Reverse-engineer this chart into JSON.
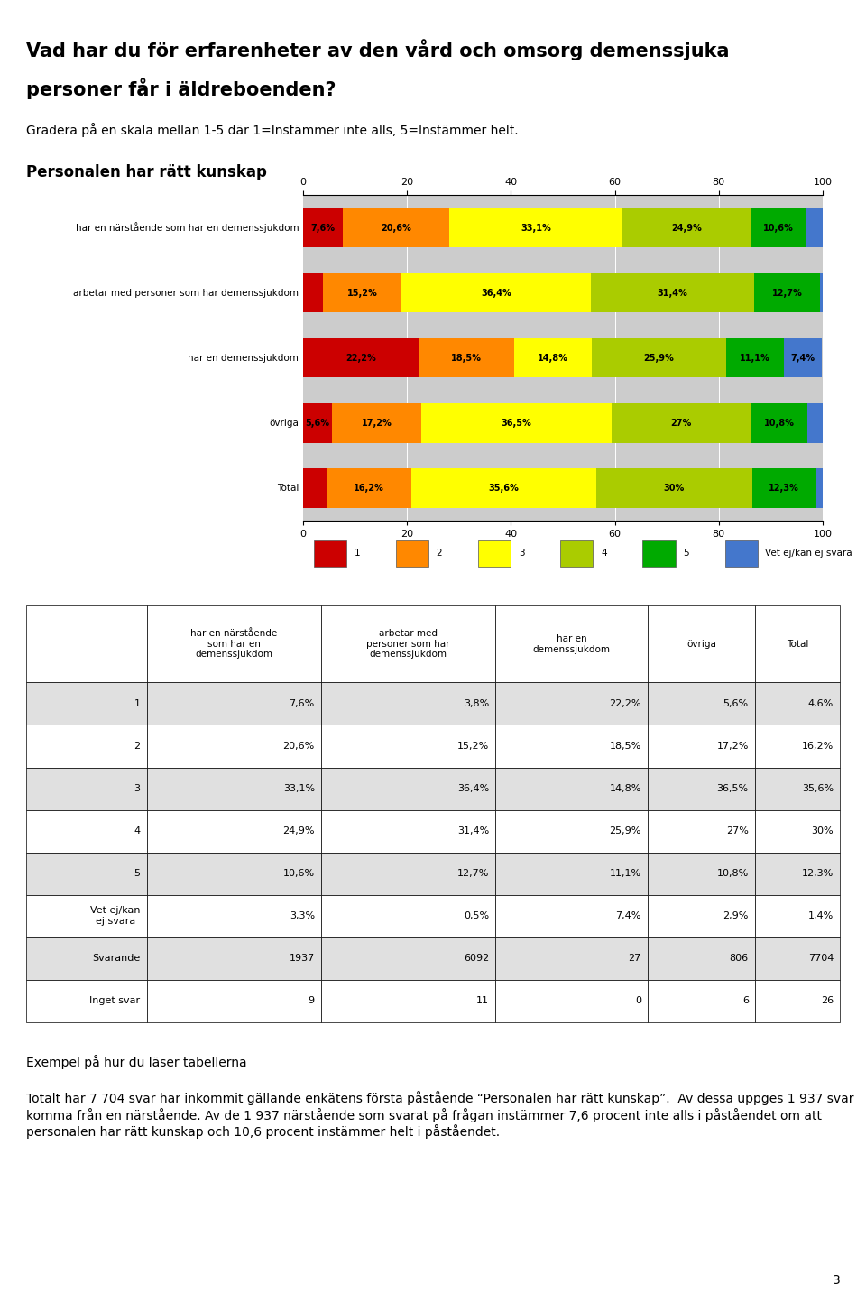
{
  "title_line1": "Vad har du för erfarenheter av den vård och omsorg demenssjuka",
  "title_line2": "personer får i äldreboenden?",
  "subtitle": "Gradera på en skala mellan 1-5 där 1=Instämmer inte alls, 5=Instämmer helt.",
  "chart_title": "Personalen har rätt kunskap",
  "categories": [
    "har en närstående som har en demenssjukdom",
    "arbetar med personer som har demenssjukdom",
    "har en demenssjukdom",
    "övriga",
    "Total"
  ],
  "bar_data": [
    [
      7.6,
      20.6,
      33.1,
      24.9,
      10.6,
      3.3
    ],
    [
      3.8,
      15.2,
      36.4,
      31.4,
      12.7,
      0.5
    ],
    [
      22.2,
      18.5,
      14.8,
      25.9,
      11.1,
      7.4
    ],
    [
      5.6,
      17.2,
      36.5,
      27.0,
      10.8,
      2.9
    ],
    [
      4.6,
      16.2,
      35.6,
      30.0,
      12.3,
      1.4
    ]
  ],
  "bar_labels": [
    [
      "7,6%",
      "20,6%",
      "33,1%",
      "24,9%",
      "10,6%",
      ""
    ],
    [
      "",
      "15,2%",
      "36,4%",
      "31,4%",
      "12,7%",
      ""
    ],
    [
      "22,2%",
      "18,5%",
      "14,8%",
      "25,9%",
      "11,1%",
      "7,4%"
    ],
    [
      "5,6%",
      "17,2%",
      "36,5%",
      "27%",
      "10,8%",
      ""
    ],
    [
      "",
      "16,2%",
      "35,6%",
      "30%",
      "12,3%",
      ""
    ]
  ],
  "colors": [
    "#cc0000",
    "#ff8800",
    "#ffff00",
    "#aacc00",
    "#00aa00",
    "#4477cc"
  ],
  "legend_labels": [
    "1",
    "2",
    "3",
    "4",
    "5",
    "Vet ej/kan ej svara"
  ],
  "chart_bg": "#cccccc",
  "table_headers": [
    "har en närstående\nsom har en\ndemenssjukdom",
    "arbetar med\npersoner som har\ndemenssjukdom",
    "har en\ndemenssjukdom",
    "övriga",
    "Total"
  ],
  "table_row_labels": [
    "1",
    "2",
    "3",
    "4",
    "5",
    "Vet ej/kan\nej svara",
    "Svarande",
    "Inget svar"
  ],
  "table_data": [
    [
      "7,6%",
      "3,8%",
      "22,2%",
      "5,6%",
      "4,6%"
    ],
    [
      "20,6%",
      "15,2%",
      "18,5%",
      "17,2%",
      "16,2%"
    ],
    [
      "33,1%",
      "36,4%",
      "14,8%",
      "36,5%",
      "35,6%"
    ],
    [
      "24,9%",
      "31,4%",
      "25,9%",
      "27%",
      "30%"
    ],
    [
      "10,6%",
      "12,7%",
      "11,1%",
      "10,8%",
      "12,3%"
    ],
    [
      "3,3%",
      "0,5%",
      "7,4%",
      "2,9%",
      "1,4%"
    ],
    [
      "1937",
      "6092",
      "27",
      "806",
      "7704"
    ],
    [
      "9",
      "11",
      "0",
      "6",
      "26"
    ]
  ],
  "example_title": "Exempel på hur du läser tabellerna",
  "example_para1": "Totalt har 7 704 svar har inkommit gällande enkätens första påstående “Personalen har rätt kunskap”.  Av dessa uppges 1 937 svar komma från en närstående. Av de 1 937",
  "example_para2": "närstående som svarat på frågan instämmer 7,6 procent inte alls i påståendet om att",
  "example_para3": "personalen har rätt kunskap och 10,6 procent instämmer helt i påståendet.",
  "example_body": "Totalt har 7 704 svar har inkommit gällande enkätens första påstående “Personalen har rätt kunskap”.  Av dessa uppges 1 937 svar komma från en närstående. Av de 1 937 närstående som svarat på frågan instämmer 7,6 procent inte alls i påståendet om att personalen har rätt kunskap och 10,6 procent instämmer helt i påståendet.",
  "page_number": "3"
}
